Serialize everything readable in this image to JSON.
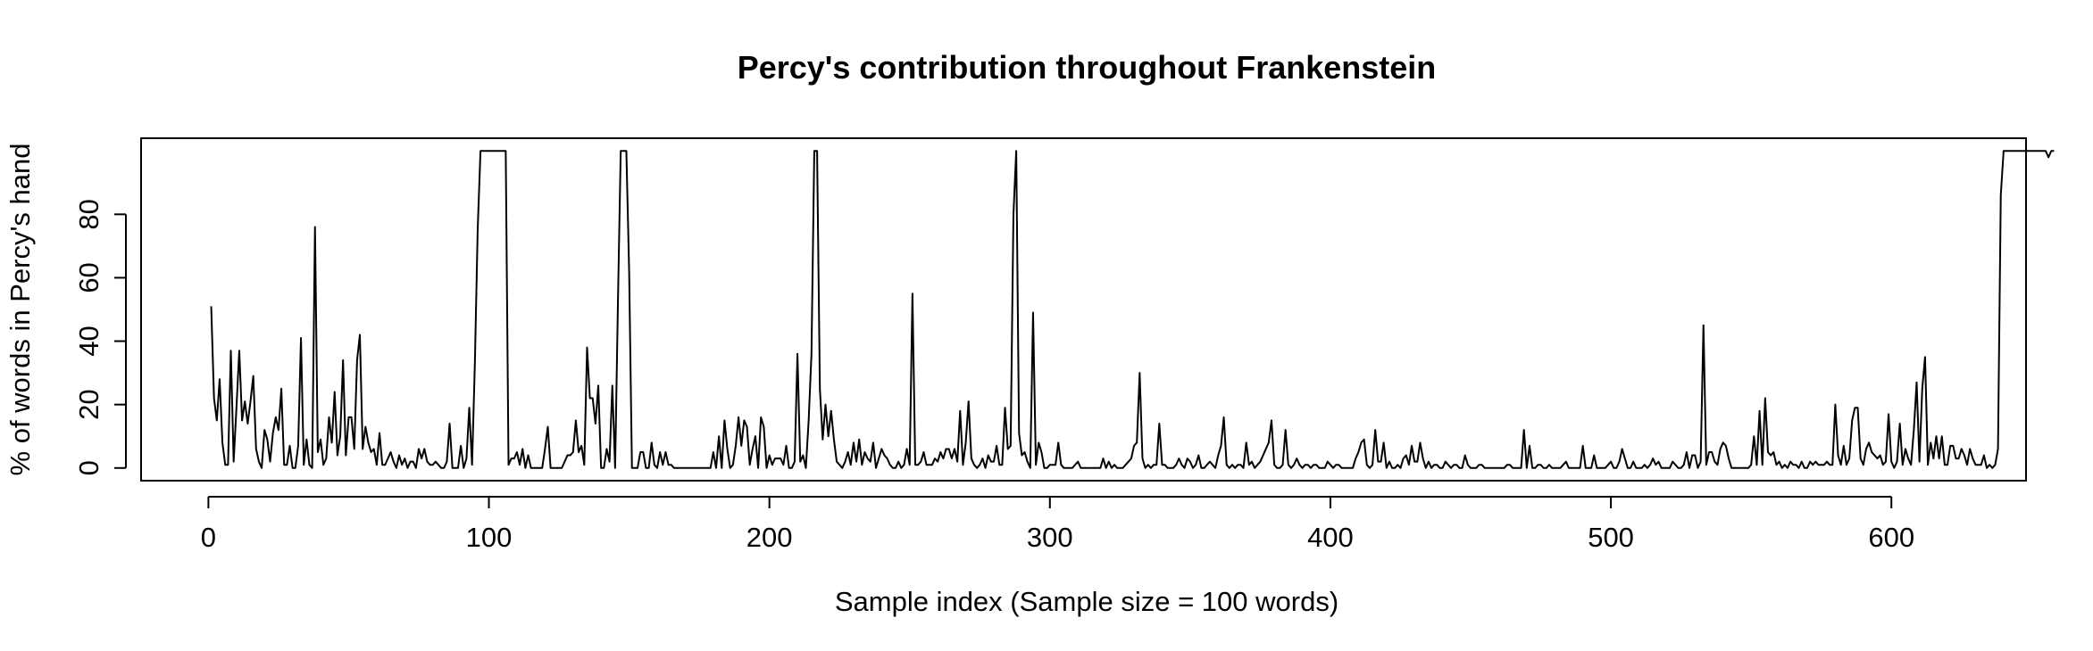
{
  "chart_data": {
    "type": "line",
    "title": "Percy's contribution throughout Frankenstein",
    "xlabel": "Sample index (Sample size = 100 words)",
    "ylabel": "% of words in Percy's hand",
    "xlim": [
      -24,
      648
    ],
    "ylim": [
      -4,
      104
    ],
    "x_ticks": [
      0,
      100,
      200,
      300,
      400,
      500,
      600
    ],
    "y_ticks": [
      0,
      20,
      40,
      60,
      80
    ],
    "grid": false,
    "legend": "none",
    "series": [
      {
        "x_start": 1,
        "values": [
          51,
          22,
          15,
          28,
          8,
          1,
          1,
          37,
          2,
          19,
          37,
          15,
          21,
          14,
          21,
          29,
          6,
          2,
          0,
          12,
          9,
          2,
          11,
          16,
          12,
          25,
          1,
          1,
          7,
          0,
          0,
          7,
          41,
          1,
          9,
          1,
          0,
          76,
          5,
          9,
          1,
          3,
          16,
          8,
          24,
          4,
          10,
          34,
          4,
          16,
          16,
          6,
          34,
          42,
          6,
          13,
          8,
          5,
          6,
          1,
          11,
          1,
          1,
          3,
          5,
          2,
          0,
          4,
          1,
          3,
          0,
          2,
          2,
          0,
          6,
          3,
          6,
          2,
          1,
          1,
          2,
          1,
          0,
          0,
          2,
          14,
          0,
          0,
          0,
          7,
          0,
          3,
          19,
          1,
          33,
          75,
          100,
          100,
          100,
          100,
          100,
          100,
          100,
          100,
          100,
          100,
          1,
          3,
          3,
          5,
          1,
          6,
          0,
          4,
          0,
          0,
          0,
          0,
          0,
          6,
          13,
          0,
          0,
          0,
          0,
          0,
          2,
          4,
          4,
          5,
          15,
          5,
          7,
          1,
          38,
          22,
          22,
          14,
          26,
          0,
          0,
          6,
          2,
          26,
          0,
          52,
          100,
          100,
          100,
          62,
          0,
          0,
          0,
          5,
          5,
          0,
          0,
          8,
          1,
          0,
          5,
          1,
          5,
          1,
          1,
          0,
          0,
          0,
          0,
          0,
          0,
          0,
          0,
          0,
          0,
          0,
          0,
          0,
          0,
          5,
          0,
          10,
          0,
          15,
          6,
          0,
          1,
          7,
          16,
          7,
          15,
          13,
          1,
          6,
          10,
          0,
          16,
          13,
          0,
          4,
          1,
          3,
          3,
          3,
          1,
          7,
          0,
          0,
          2,
          36,
          2,
          4,
          0,
          15,
          36,
          100,
          100,
          25,
          9,
          20,
          10,
          18,
          9,
          2,
          1,
          0,
          2,
          5,
          1,
          8,
          2,
          9,
          1,
          5,
          3,
          2,
          8,
          0,
          3,
          6,
          4,
          3,
          1,
          0,
          0,
          2,
          0,
          1,
          6,
          1,
          55,
          1,
          1,
          2,
          5,
          1,
          1,
          1,
          3,
          2,
          5,
          3,
          6,
          6,
          3,
          6,
          2,
          18,
          1,
          8,
          21,
          3,
          1,
          0,
          1,
          3,
          0,
          4,
          2,
          2,
          7,
          1,
          1,
          19,
          6,
          7,
          80,
          100,
          11,
          4,
          5,
          2,
          0,
          49,
          1,
          8,
          5,
          0,
          0,
          1,
          1,
          1,
          8,
          1,
          0,
          0,
          0,
          0,
          1,
          2,
          0,
          0,
          0,
          0,
          0,
          0,
          0,
          0,
          3,
          0,
          2,
          0,
          1,
          0,
          0,
          0,
          1,
          2,
          3,
          7,
          8,
          30,
          3,
          0,
          1,
          0,
          1,
          1,
          14,
          1,
          1,
          0,
          0,
          0,
          1,
          3,
          1,
          0,
          3,
          2,
          0,
          1,
          4,
          0,
          0,
          1,
          2,
          1,
          0,
          4,
          7,
          16,
          1,
          0,
          1,
          0,
          1,
          1,
          0,
          8,
          1,
          2,
          0,
          1,
          2,
          4,
          6,
          8,
          15,
          1,
          0,
          0,
          1,
          12,
          1,
          0,
          1,
          3,
          1,
          0,
          1,
          1,
          0,
          1,
          1,
          0,
          0,
          0,
          2,
          1,
          0,
          1,
          1,
          0,
          0,
          0,
          0,
          0,
          3,
          5,
          8,
          9,
          1,
          0,
          1,
          12,
          2,
          2,
          8,
          0,
          2,
          0,
          0,
          1,
          0,
          3,
          4,
          1,
          7,
          2,
          2,
          8,
          3,
          0,
          2,
          0,
          1,
          1,
          0,
          0,
          2,
          1,
          0,
          1,
          1,
          0,
          0,
          4,
          1,
          0,
          0,
          0,
          1,
          1,
          0,
          0,
          0,
          0,
          0,
          0,
          0,
          0,
          1,
          1,
          0,
          0,
          0,
          0,
          12,
          0,
          7,
          0,
          0,
          1,
          1,
          0,
          0,
          1,
          0,
          0,
          0,
          0,
          1,
          2,
          0,
          0,
          0,
          0,
          0,
          7,
          0,
          0,
          0,
          4,
          0,
          0,
          0,
          0,
          1,
          2,
          0,
          0,
          2,
          6,
          3,
          0,
          0,
          2,
          0,
          0,
          0,
          1,
          0,
          1,
          3,
          1,
          2,
          0,
          0,
          0,
          0,
          2,
          1,
          0,
          0,
          1,
          5,
          0,
          4,
          4,
          0,
          2,
          45,
          1,
          5,
          5,
          2,
          1,
          6,
          8,
          7,
          3,
          0,
          0,
          0,
          0,
          0,
          0,
          0,
          1,
          10,
          1,
          18,
          1,
          22,
          5,
          4,
          5,
          1,
          2,
          0,
          1,
          0,
          2,
          1,
          1,
          0,
          2,
          0,
          0,
          2,
          1,
          2,
          1,
          1,
          1,
          2,
          1,
          1,
          20,
          4,
          1,
          7,
          1,
          3,
          15,
          19,
          19,
          3,
          1,
          6,
          8,
          5,
          4,
          3,
          4,
          1,
          2,
          17,
          2,
          0,
          2,
          14,
          1,
          6,
          3,
          1,
          12,
          27,
          2,
          25,
          35,
          1,
          8,
          3,
          10,
          3,
          10,
          1,
          1,
          7,
          7,
          3,
          3,
          6,
          4,
          1,
          6,
          3,
          1,
          1,
          1,
          4,
          0,
          1,
          0,
          1,
          6,
          86,
          100,
          100,
          100,
          100,
          100,
          100,
          100,
          100,
          100,
          100,
          100,
          100,
          100,
          100,
          100,
          100,
          98,
          100,
          100
        ]
      }
    ]
  }
}
